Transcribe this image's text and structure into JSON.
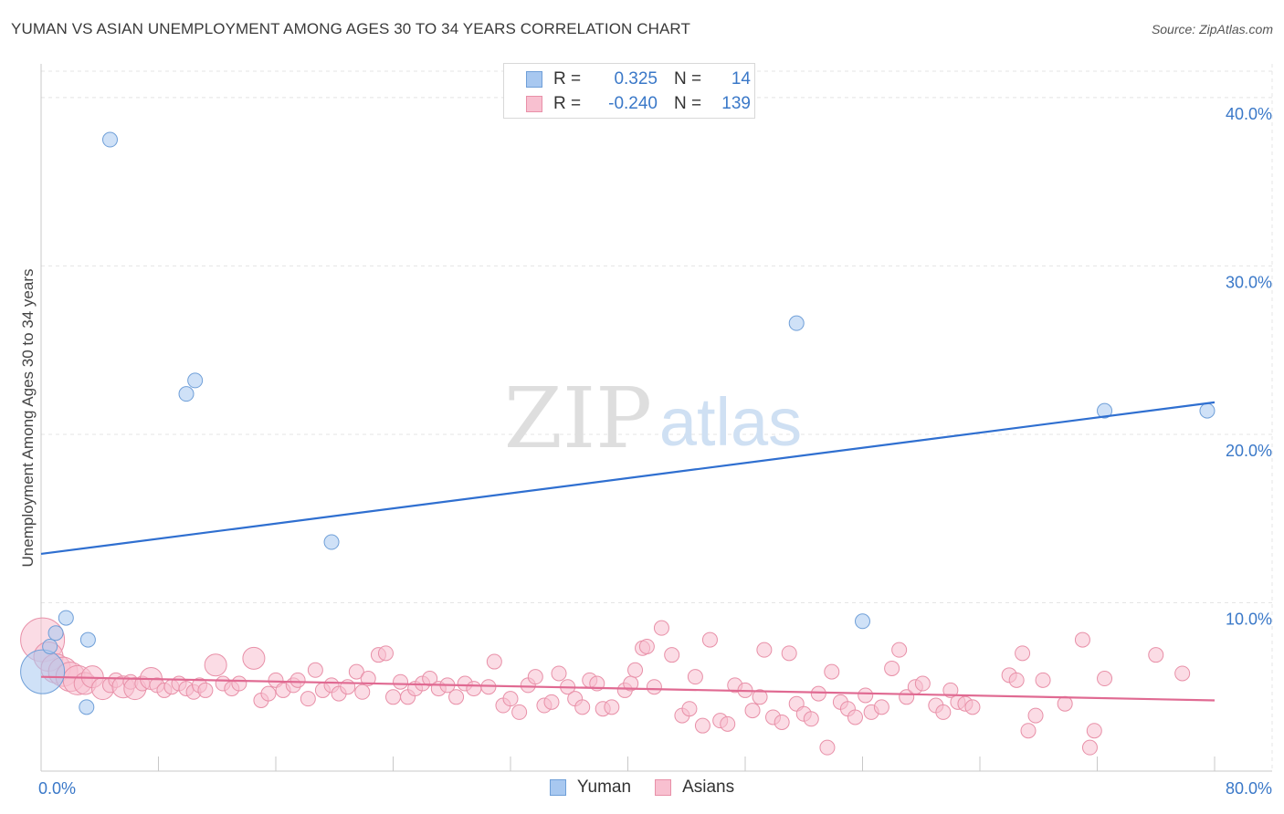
{
  "header": {
    "title": "YUMAN VS ASIAN UNEMPLOYMENT AMONG AGES 30 TO 34 YEARS CORRELATION CHART",
    "source": "Source: ZipAtlas.com"
  },
  "watermark": {
    "zip": "ZIP",
    "atlas": "atlas"
  },
  "legend": {
    "rows": [
      {
        "r_label": "R =",
        "r_value": "0.325",
        "n_label": "N =",
        "n_value": "14",
        "color": "#a8c8f0",
        "border": "#6f9fd8"
      },
      {
        "r_label": "R =",
        "r_value": "-0.240",
        "n_label": "N =",
        "n_value": "139",
        "color": "#f8c0d0",
        "border": "#e890a8"
      }
    ]
  },
  "bottom_legend": {
    "items": [
      {
        "label": "Yuman",
        "color": "#a8c8f0",
        "border": "#6f9fd8"
      },
      {
        "label": "Asians",
        "color": "#f8c0d0",
        "border": "#e890a8"
      }
    ]
  },
  "chart_data": {
    "type": "scatter",
    "title": "YUMAN VS ASIAN UNEMPLOYMENT AMONG AGES 30 TO 34 YEARS CORRELATION CHART",
    "xlabel": "",
    "ylabel": "Unemployment Among Ages 30 to 34 years",
    "xlim": [
      0,
      80
    ],
    "ylim": [
      0,
      42
    ],
    "x_tick_labels": [
      {
        "value": 0,
        "label": "0.0%"
      },
      {
        "value": 80,
        "label": "80.0%"
      }
    ],
    "y_tick_labels": [
      {
        "value": 10,
        "label": "10.0%"
      },
      {
        "value": 20,
        "label": "20.0%"
      },
      {
        "value": 30,
        "label": "30.0%"
      },
      {
        "value": 40,
        "label": "40.0%"
      }
    ],
    "grid": true,
    "series": [
      {
        "name": "Yuman",
        "color": "#a8c8f0",
        "stroke": "#6f9fd8",
        "line_color": "#2f6fd0",
        "trend": [
          [
            0,
            12.9
          ],
          [
            80,
            21.9
          ]
        ],
        "points": [
          [
            0.1,
            5.9,
            3
          ],
          [
            0.6,
            7.4,
            1
          ],
          [
            1.0,
            8.2,
            1
          ],
          [
            1.7,
            9.1,
            1
          ],
          [
            3.1,
            3.8,
            1
          ],
          [
            3.2,
            7.8,
            1
          ],
          [
            4.7,
            37.5,
            1
          ],
          [
            9.9,
            22.4,
            1
          ],
          [
            10.5,
            23.2,
            1
          ],
          [
            19.8,
            13.6,
            1
          ],
          [
            51.5,
            26.6,
            1
          ],
          [
            56.0,
            8.9,
            1
          ],
          [
            72.5,
            21.4,
            1
          ],
          [
            79.5,
            21.4,
            1
          ]
        ]
      },
      {
        "name": "Asians",
        "color": "#f8c0d0",
        "stroke": "#e890a8",
        "line_color": "#e06a92",
        "trend": [
          [
            0,
            5.6
          ],
          [
            80,
            4.2
          ]
        ],
        "points": [
          [
            0.1,
            7.8,
            3
          ],
          [
            0.5,
            6.8,
            2
          ],
          [
            1.0,
            6.1,
            2
          ],
          [
            1.5,
            5.9,
            2
          ],
          [
            2.0,
            5.6,
            2
          ],
          [
            2.5,
            5.4,
            2
          ],
          [
            3.0,
            5.2,
            1.5
          ],
          [
            3.5,
            5.6,
            1.5
          ],
          [
            4.2,
            4.9,
            1.5
          ],
          [
            4.7,
            5.1,
            1
          ],
          [
            5.1,
            5.4,
            1
          ],
          [
            5.6,
            5.0,
            1.5
          ],
          [
            6.1,
            5.3,
            1
          ],
          [
            6.4,
            4.9,
            1.5
          ],
          [
            6.9,
            5.2,
            1
          ],
          [
            7.5,
            5.5,
            1.5
          ],
          [
            7.9,
            5.1,
            1
          ],
          [
            8.4,
            4.8,
            1
          ],
          [
            8.9,
            5.0,
            1
          ],
          [
            9.4,
            5.2,
            1
          ],
          [
            9.9,
            4.9,
            1
          ],
          [
            10.4,
            4.7,
            1
          ],
          [
            10.8,
            5.1,
            1
          ],
          [
            11.2,
            4.8,
            1
          ],
          [
            11.9,
            6.3,
            1.5
          ],
          [
            12.4,
            5.2,
            1
          ],
          [
            13.0,
            4.9,
            1
          ],
          [
            13.5,
            5.2,
            1
          ],
          [
            14.5,
            6.7,
            1.5
          ],
          [
            15.0,
            4.2,
            1
          ],
          [
            15.5,
            4.6,
            1
          ],
          [
            16.0,
            5.4,
            1
          ],
          [
            16.5,
            4.8,
            1
          ],
          [
            17.2,
            5.1,
            1
          ],
          [
            17.5,
            5.4,
            1
          ],
          [
            18.2,
            4.3,
            1
          ],
          [
            18.7,
            6.0,
            1
          ],
          [
            19.2,
            4.8,
            1
          ],
          [
            19.8,
            5.1,
            1
          ],
          [
            20.3,
            4.6,
            1
          ],
          [
            20.9,
            5.0,
            1
          ],
          [
            21.5,
            5.9,
            1
          ],
          [
            21.9,
            4.7,
            1
          ],
          [
            22.3,
            5.5,
            1
          ],
          [
            23.0,
            6.9,
            1
          ],
          [
            23.5,
            7.0,
            1
          ],
          [
            24.0,
            4.4,
            1
          ],
          [
            24.5,
            5.3,
            1
          ],
          [
            25.0,
            4.4,
            1
          ],
          [
            25.5,
            4.9,
            1
          ],
          [
            26.0,
            5.2,
            1
          ],
          [
            26.5,
            5.5,
            1
          ],
          [
            27.1,
            4.9,
            1
          ],
          [
            27.7,
            5.1,
            1
          ],
          [
            28.3,
            4.4,
            1
          ],
          [
            28.9,
            5.2,
            1
          ],
          [
            29.5,
            4.9,
            1
          ],
          [
            30.5,
            5.0,
            1
          ],
          [
            30.9,
            6.5,
            1
          ],
          [
            31.5,
            3.9,
            1
          ],
          [
            32.0,
            4.3,
            1
          ],
          [
            32.6,
            3.5,
            1
          ],
          [
            33.2,
            5.1,
            1
          ],
          [
            33.7,
            5.6,
            1
          ],
          [
            34.3,
            3.9,
            1
          ],
          [
            34.8,
            4.1,
            1
          ],
          [
            35.3,
            5.8,
            1
          ],
          [
            35.9,
            5.0,
            1
          ],
          [
            36.4,
            4.3,
            1
          ],
          [
            36.9,
            3.8,
            1
          ],
          [
            37.4,
            5.4,
            1
          ],
          [
            37.9,
            5.2,
            1
          ],
          [
            38.3,
            3.7,
            1
          ],
          [
            38.9,
            3.8,
            1
          ],
          [
            39.8,
            4.8,
            1
          ],
          [
            40.2,
            5.2,
            1
          ],
          [
            40.5,
            6.0,
            1
          ],
          [
            41.0,
            7.3,
            1
          ],
          [
            41.3,
            7.4,
            1
          ],
          [
            41.8,
            5.0,
            1
          ],
          [
            42.3,
            8.5,
            1
          ],
          [
            43.0,
            6.9,
            1
          ],
          [
            43.7,
            3.3,
            1
          ],
          [
            44.2,
            3.7,
            1
          ],
          [
            44.6,
            5.6,
            1
          ],
          [
            45.1,
            2.7,
            1
          ],
          [
            45.6,
            7.8,
            1
          ],
          [
            46.3,
            3.0,
            1
          ],
          [
            46.8,
            2.8,
            1
          ],
          [
            47.3,
            5.1,
            1
          ],
          [
            48.0,
            4.8,
            1
          ],
          [
            48.5,
            3.6,
            1
          ],
          [
            49.0,
            4.4,
            1
          ],
          [
            49.3,
            7.2,
            1
          ],
          [
            49.9,
            3.2,
            1
          ],
          [
            50.5,
            2.9,
            1
          ],
          [
            51.0,
            7.0,
            1
          ],
          [
            51.5,
            4.0,
            1
          ],
          [
            52.0,
            3.4,
            1
          ],
          [
            52.5,
            3.1,
            1
          ],
          [
            53.0,
            4.6,
            1
          ],
          [
            53.6,
            1.4,
            1
          ],
          [
            53.9,
            5.9,
            1
          ],
          [
            54.5,
            4.1,
            1
          ],
          [
            55.0,
            3.7,
            1
          ],
          [
            55.5,
            3.2,
            1
          ],
          [
            56.2,
            4.5,
            1
          ],
          [
            56.6,
            3.5,
            1
          ],
          [
            57.3,
            3.8,
            1
          ],
          [
            58.0,
            6.1,
            1
          ],
          [
            58.5,
            7.2,
            1
          ],
          [
            59.0,
            4.4,
            1
          ],
          [
            59.6,
            5.0,
            1
          ],
          [
            60.1,
            5.2,
            1
          ],
          [
            61.0,
            3.9,
            1
          ],
          [
            61.5,
            3.5,
            1
          ],
          [
            62.0,
            4.8,
            1
          ],
          [
            62.5,
            4.1,
            1
          ],
          [
            63.0,
            4.0,
            1
          ],
          [
            63.5,
            3.8,
            1
          ],
          [
            66.0,
            5.7,
            1
          ],
          [
            66.5,
            5.4,
            1
          ],
          [
            66.9,
            7.0,
            1
          ],
          [
            67.3,
            2.4,
            1
          ],
          [
            67.8,
            3.3,
            1
          ],
          [
            68.3,
            5.4,
            1
          ],
          [
            69.8,
            4.0,
            1
          ],
          [
            71.0,
            7.8,
            1
          ],
          [
            71.5,
            1.4,
            1
          ],
          [
            71.8,
            2.4,
            1
          ],
          [
            72.5,
            5.5,
            1
          ],
          [
            76.0,
            6.9,
            1
          ],
          [
            77.8,
            5.8,
            1
          ]
        ]
      }
    ]
  }
}
